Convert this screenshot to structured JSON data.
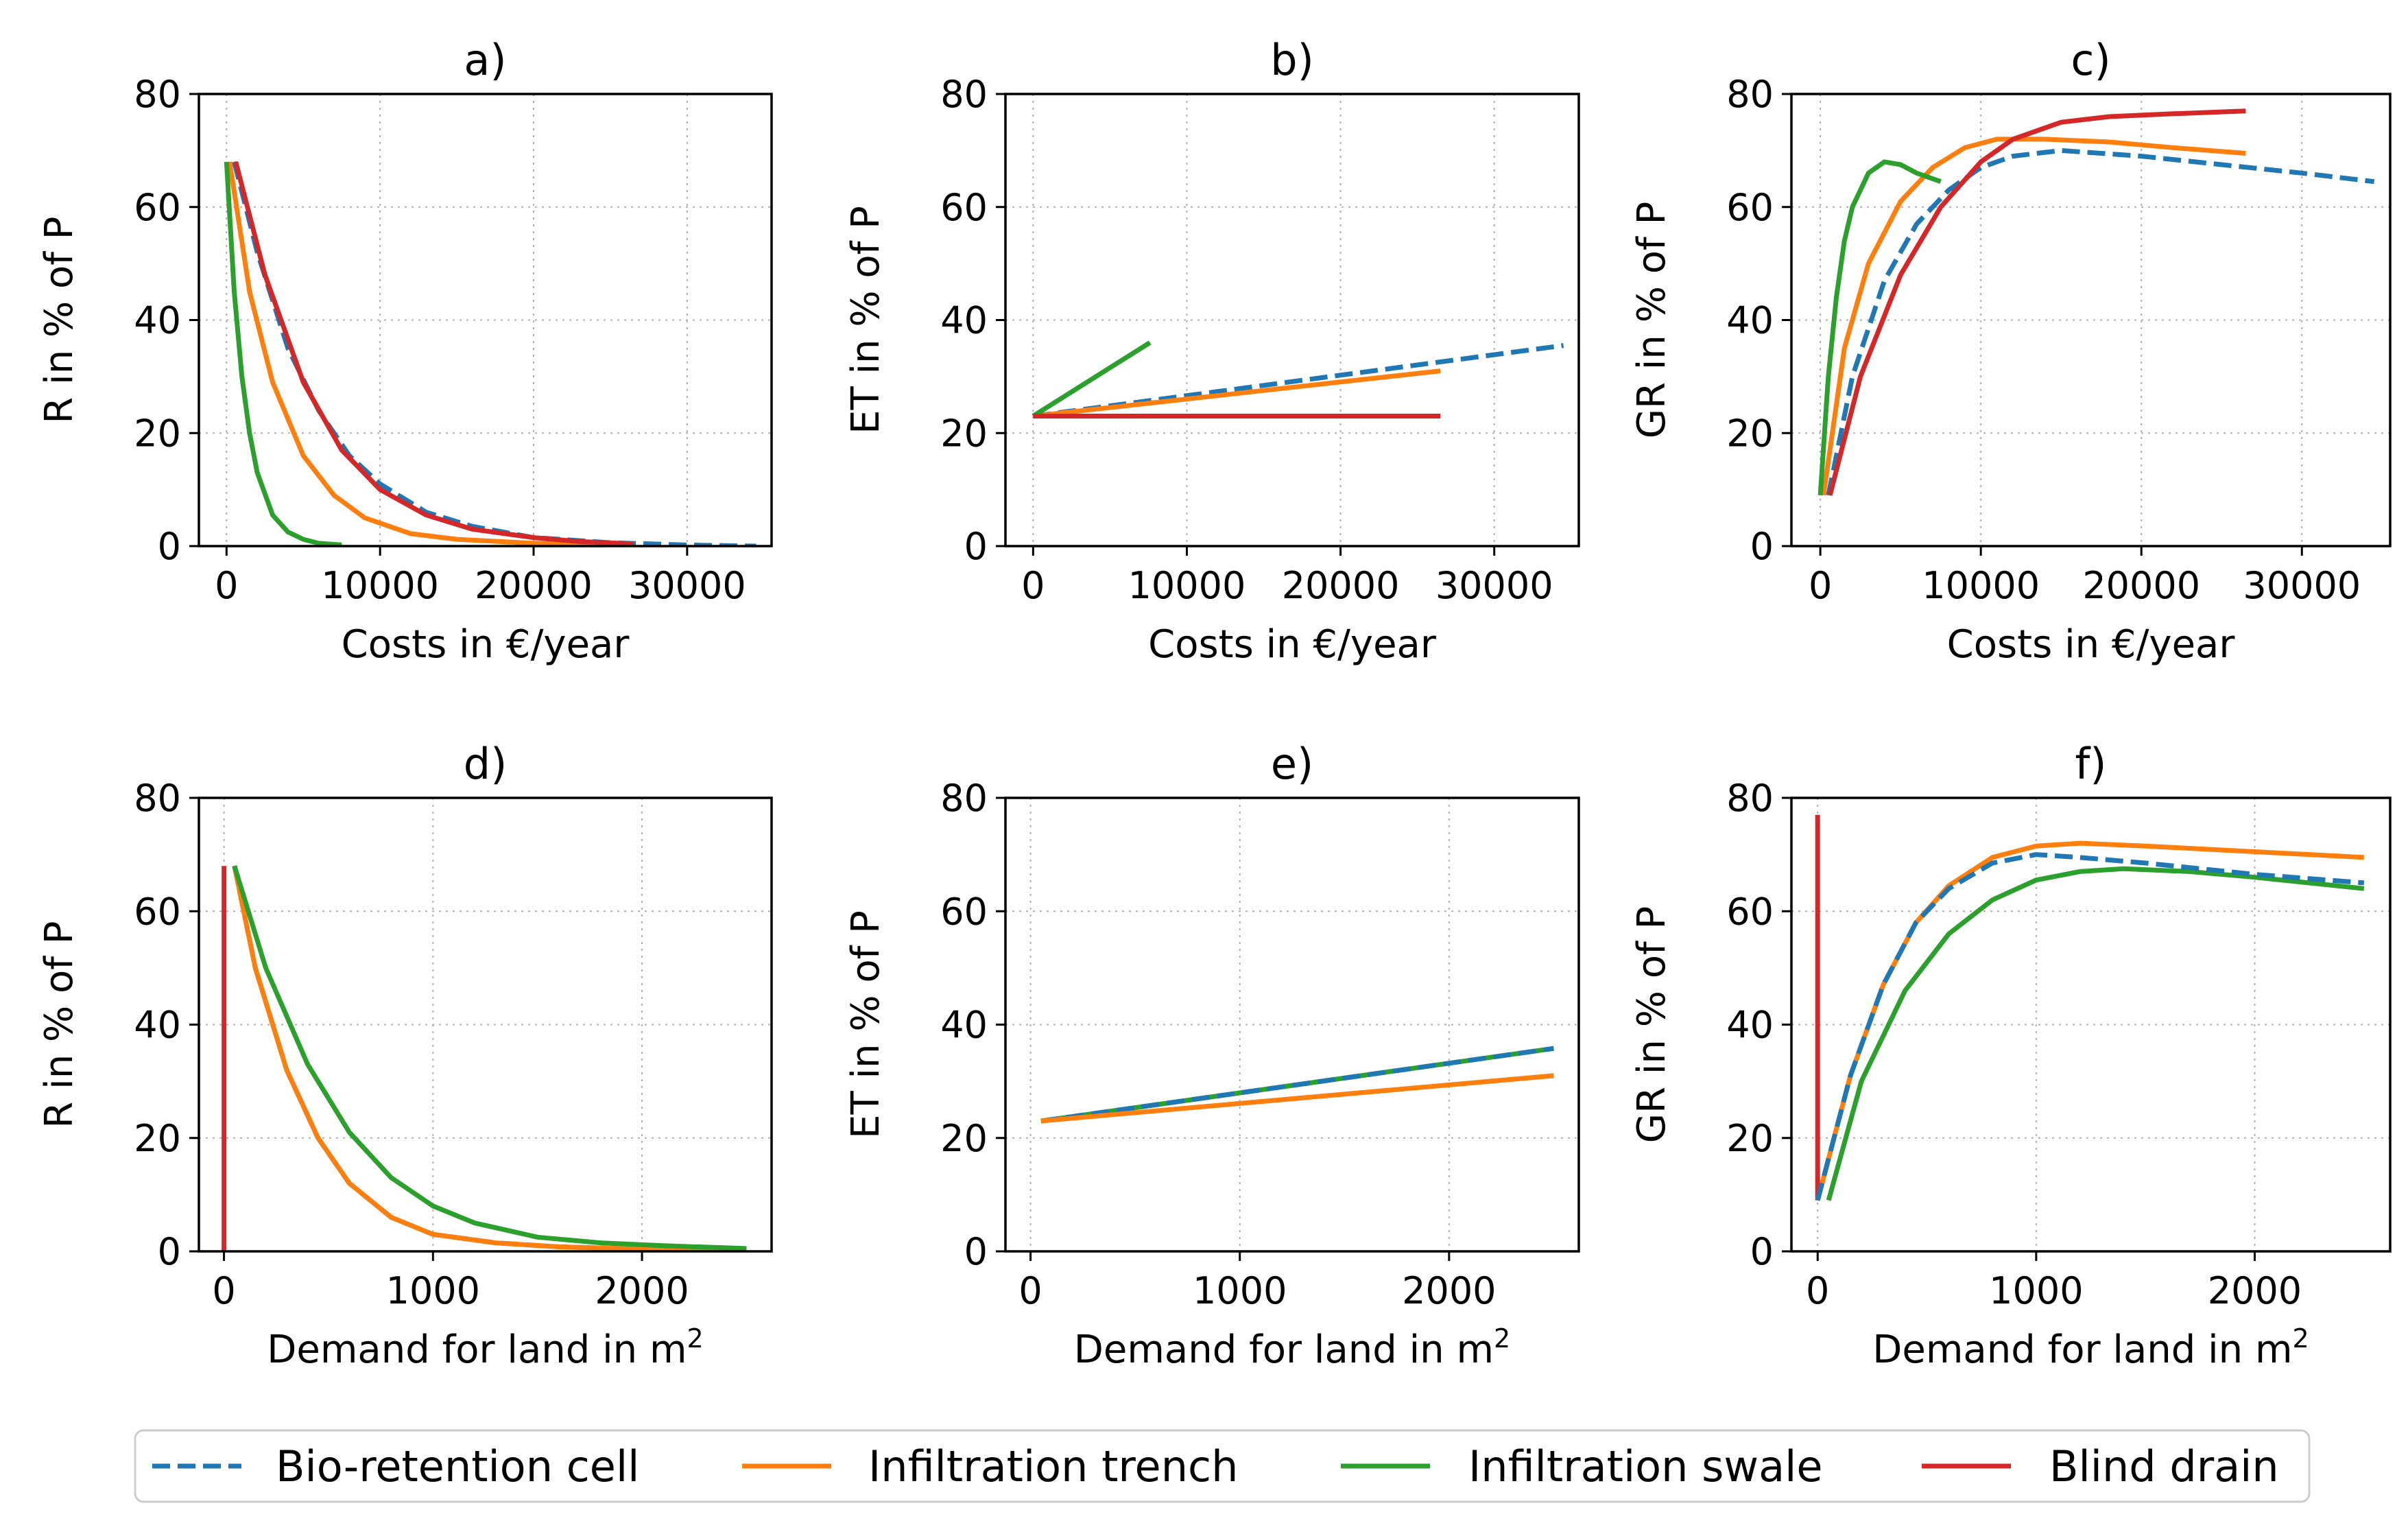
{
  "series_styles": [
    {
      "name": "Bio-retention cell",
      "color": "#1f77b4",
      "dash": true
    },
    {
      "name": "Infiltration trench",
      "color": "#ff7f0e",
      "dash": false
    },
    {
      "name": "Infiltration swale",
      "color": "#2ca02c",
      "dash": false
    },
    {
      "name": "Blind drain",
      "color": "#d62728",
      "dash": false
    }
  ],
  "legend": {
    "labels": [
      "Bio-retention cell",
      "Infiltration trench",
      "Infiltration swale",
      "Blind drain"
    ]
  },
  "chart_data": [
    {
      "type": "line",
      "title": "a)",
      "xlabel": "Costs in €/year",
      "ylabel": "R in % of P",
      "xlim": [
        -1800,
        35500
      ],
      "ylim": [
        0,
        80
      ],
      "xticks": [
        0,
        10000,
        20000,
        30000
      ],
      "xtick_labels": [
        "0",
        "10000",
        "20000",
        "30000"
      ],
      "yticks": [
        0,
        20,
        40,
        60,
        80
      ],
      "grid": true,
      "series": [
        {
          "name": "Bio-retention cell",
          "x": [
            500,
            2000,
            4000,
            6000,
            8000,
            10000,
            13000,
            16000,
            20000,
            25000,
            30000,
            34500
          ],
          "y": [
            68,
            52,
            35,
            24,
            16,
            11,
            6,
            3.5,
            1.5,
            0.6,
            0.2,
            0
          ]
        },
        {
          "name": "Infiltration trench",
          "x": [
            200,
            1500,
            3000,
            5000,
            7000,
            9000,
            12000,
            15000,
            20000,
            26500
          ],
          "y": [
            68,
            45,
            29,
            16,
            9,
            5,
            2.2,
            1.2,
            0.5,
            0.2
          ]
        },
        {
          "name": "Infiltration swale",
          "x": [
            0,
            500,
            1000,
            1500,
            2000,
            3000,
            4000,
            5000,
            6000,
            7500
          ],
          "y": [
            68,
            45,
            30,
            20,
            13,
            5.5,
            2.5,
            1.2,
            0.5,
            0.2
          ]
        },
        {
          "name": "Blind drain",
          "x": [
            600,
            2500,
            5000,
            7500,
            10000,
            13000,
            16000,
            20000,
            23000,
            26500
          ],
          "y": [
            68,
            48,
            29,
            17,
            10,
            5.5,
            3,
            1.5,
            0.8,
            0.4
          ]
        }
      ]
    },
    {
      "type": "line",
      "title": "b)",
      "xlabel": "Costs in €/year",
      "ylabel": "ET in % of P",
      "xlim": [
        -1800,
        35500
      ],
      "ylim": [
        0,
        80
      ],
      "xticks": [
        0,
        10000,
        20000,
        30000
      ],
      "xtick_labels": [
        "0",
        "10000",
        "20000",
        "30000"
      ],
      "yticks": [
        0,
        20,
        40,
        60,
        80
      ],
      "grid": true,
      "series": [
        {
          "name": "Bio-retention cell",
          "x": [
            0,
            34500
          ],
          "y": [
            23,
            35.5
          ]
        },
        {
          "name": "Infiltration trench",
          "x": [
            0,
            26500
          ],
          "y": [
            23,
            31
          ]
        },
        {
          "name": "Infiltration swale",
          "x": [
            0,
            7600
          ],
          "y": [
            23,
            36
          ]
        },
        {
          "name": "Blind drain",
          "x": [
            0,
            26500
          ],
          "y": [
            23,
            23
          ]
        }
      ]
    },
    {
      "type": "line",
      "title": "c)",
      "xlabel": "Costs in €/year",
      "ylabel": "GR in % of P",
      "xlim": [
        -1800,
        35500
      ],
      "ylim": [
        0,
        80
      ],
      "xticks": [
        0,
        10000,
        20000,
        30000
      ],
      "xtick_labels": [
        "0",
        "10000",
        "20000",
        "30000"
      ],
      "yticks": [
        0,
        20,
        40,
        60,
        80
      ],
      "grid": true,
      "series": [
        {
          "name": "Bio-retention cell",
          "x": [
            500,
            2000,
            4000,
            6000,
            8000,
            10000,
            12000,
            15000,
            20000,
            25000,
            30000,
            34500
          ],
          "y": [
            9,
            30,
            47,
            57,
            63,
            67,
            69,
            70,
            69,
            67.5,
            66,
            64.5
          ]
        },
        {
          "name": "Infiltration trench",
          "x": [
            200,
            1500,
            3000,
            5000,
            7000,
            9000,
            11000,
            14000,
            18000,
            22000,
            26500
          ],
          "y": [
            9,
            35,
            50,
            61,
            67,
            70.5,
            72,
            72,
            71.5,
            70.5,
            69.5
          ]
        },
        {
          "name": "Infiltration swale",
          "x": [
            0,
            500,
            1000,
            1500,
            2000,
            3000,
            4000,
            5000,
            6000,
            7500
          ],
          "y": [
            9,
            30,
            44,
            54,
            60,
            66,
            68,
            67.5,
            66,
            64.5
          ]
        },
        {
          "name": "Blind drain",
          "x": [
            600,
            2500,
            5000,
            7500,
            10000,
            12000,
            15000,
            18000,
            22000,
            26500
          ],
          "y": [
            9,
            30,
            48,
            60,
            68,
            72,
            75,
            76,
            76.5,
            77
          ]
        }
      ]
    },
    {
      "type": "line",
      "title": "d)",
      "xlabel": "Demand for land in m2",
      "ylabel": "R in % of P",
      "xlim": [
        -120,
        2620
      ],
      "ylim": [
        0,
        80
      ],
      "xticks": [
        0,
        1000,
        2000
      ],
      "xtick_labels": [
        "0",
        "1000",
        "2000"
      ],
      "yticks": [
        0,
        20,
        40,
        60,
        80
      ],
      "grid": true,
      "series": [
        {
          "name": "Bio-retention cell",
          "x": [
            50,
            150,
            300,
            450,
            600,
            800,
            1000,
            1300,
            1600,
            2000,
            2500
          ],
          "y": [
            68,
            50,
            32,
            20,
            12,
            6,
            3,
            1.5,
            0.8,
            0.4,
            0.2
          ]
        },
        {
          "name": "Infiltration trench",
          "x": [
            50,
            150,
            300,
            450,
            600,
            800,
            1000,
            1300,
            1600,
            2000,
            2500
          ],
          "y": [
            68,
            50,
            32,
            20,
            12,
            6,
            3,
            1.5,
            0.8,
            0.4,
            0.2
          ]
        },
        {
          "name": "Infiltration swale",
          "x": [
            50,
            200,
            400,
            600,
            800,
            1000,
            1200,
            1500,
            1800,
            2100,
            2500
          ],
          "y": [
            68,
            50,
            33,
            21,
            13,
            8,
            5,
            2.5,
            1.5,
            1,
            0.5
          ]
        },
        {
          "name": "Blind drain",
          "x": [
            0,
            0
          ],
          "y": [
            0,
            68
          ]
        }
      ]
    },
    {
      "type": "line",
      "title": "e)",
      "xlabel": "Demand for land in m2",
      "ylabel": "ET in % of P",
      "xlim": [
        -120,
        2620
      ],
      "ylim": [
        0,
        80
      ],
      "xticks": [
        0,
        1000,
        2000
      ],
      "xtick_labels": [
        "0",
        "1000",
        "2000"
      ],
      "yticks": [
        0,
        20,
        40,
        60,
        80
      ],
      "grid": true,
      "series": [
        {
          "name": "Infiltration swale",
          "x": [
            50,
            2500
          ],
          "y": [
            23,
            35.8
          ]
        },
        {
          "name": "Bio-retention cell",
          "x": [
            50,
            2500
          ],
          "y": [
            23,
            35.8
          ]
        },
        {
          "name": "Infiltration trench",
          "x": [
            50,
            2500
          ],
          "y": [
            23,
            31
          ]
        }
      ]
    },
    {
      "type": "line",
      "title": "f)",
      "xlabel": "Demand for land in m2",
      "ylabel": "GR in % of P",
      "xlim": [
        -120,
        2620
      ],
      "ylim": [
        0,
        80
      ],
      "xticks": [
        0,
        1000,
        2000
      ],
      "xtick_labels": [
        "0",
        "1000",
        "2000"
      ],
      "yticks": [
        0,
        20,
        40,
        60,
        80
      ],
      "grid": true,
      "series": [
        {
          "name": "Blind drain",
          "x": [
            0,
            0
          ],
          "y": [
            9,
            77
          ]
        },
        {
          "name": "Infiltration swale",
          "x": [
            50,
            200,
            400,
            600,
            800,
            1000,
            1200,
            1400,
            1700,
            2000,
            2500
          ],
          "y": [
            9,
            30,
            46,
            56,
            62,
            65.5,
            67,
            67.5,
            67,
            66,
            64
          ]
        },
        {
          "name": "Infiltration trench",
          "x": [
            0,
            150,
            300,
            450,
            600,
            800,
            1000,
            1200,
            1500,
            2000,
            2500
          ],
          "y": [
            9,
            31,
            47,
            58,
            64.5,
            69.5,
            71.5,
            72,
            71.5,
            70.5,
            69.5
          ]
        },
        {
          "name": "Bio-retention cell",
          "x": [
            0,
            150,
            300,
            450,
            600,
            800,
            1000,
            1200,
            1500,
            2000,
            2500
          ],
          "y": [
            9,
            31,
            47,
            58,
            64,
            68.5,
            70,
            69.5,
            68.5,
            66.5,
            65
          ]
        }
      ]
    }
  ]
}
